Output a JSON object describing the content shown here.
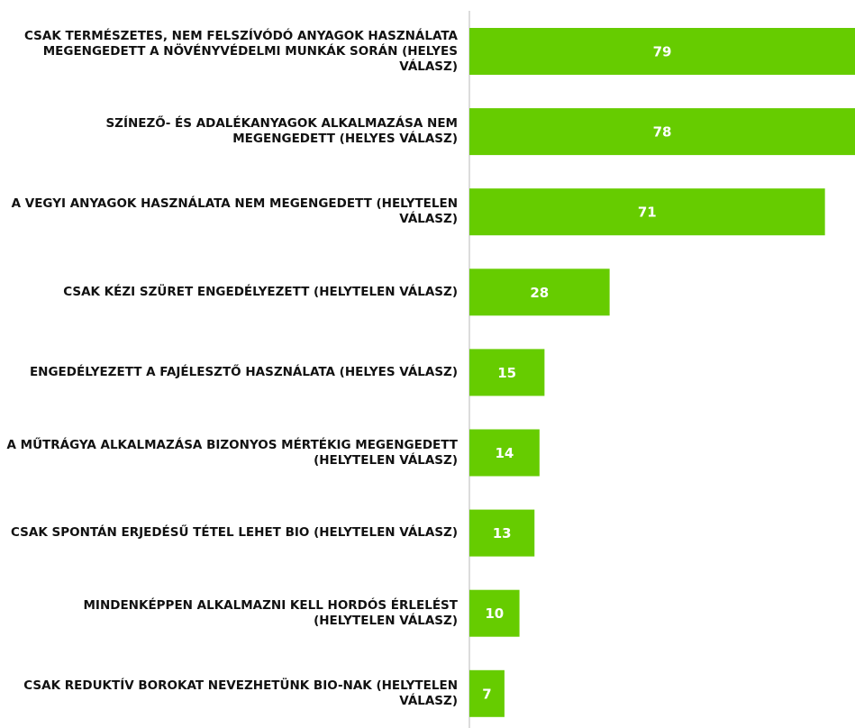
{
  "chart_data": {
    "type": "bar",
    "orientation": "horizontal",
    "categories": [
      "CSAK TERMÉSZETES, NEM FELSZÍVÓDÓ ANYAGOK HASZNÁLATA MEGENGEDETT A NÖVÉNYVÉDELMI MUNKÁK SORÁN (HELYES VÁLASZ)",
      "SZÍNEZŐ- ÉS ADALÉKANYAGOK ALKALMAZÁSA NEM MEGENGEDETT (HELYES VÁLASZ)",
      "A VEGYI ANYAGOK HASZNÁLATA NEM MEGENGEDETT (HELYTELEN VÁLASZ)",
      "CSAK KÉZI SZÜRET ENGEDÉLYEZETT (HELYTELEN VÁLASZ)",
      "ENGEDÉLYEZETT A FAJÉLESZTŐ HASZNÁLATA (HELYES VÁLASZ)",
      "A MŰTRÁGYA ALKALMAZÁSA BIZONYOS MÉRTÉKIG MEGENGEDETT (HELYTELEN VÁLASZ)",
      "CSAK SPONTÁN ERJEDÉSŰ TÉTEL LEHET BIO (HELYTELEN VÁLASZ)",
      "MINDENKÉPPEN ALKALMAZNI KELL HORDÓS ÉRLELÉST (HELYTELEN VÁLASZ)",
      "CSAK REDUKTÍV BOROKAT NEVEZHETÜNK BIO-NAK (HELYTELEN VÁLASZ)"
    ],
    "values": [
      79,
      78,
      71,
      28,
      15,
      14,
      13,
      10,
      7
    ],
    "color": "#66cc00",
    "xlim": [
      0,
      77
    ]
  }
}
